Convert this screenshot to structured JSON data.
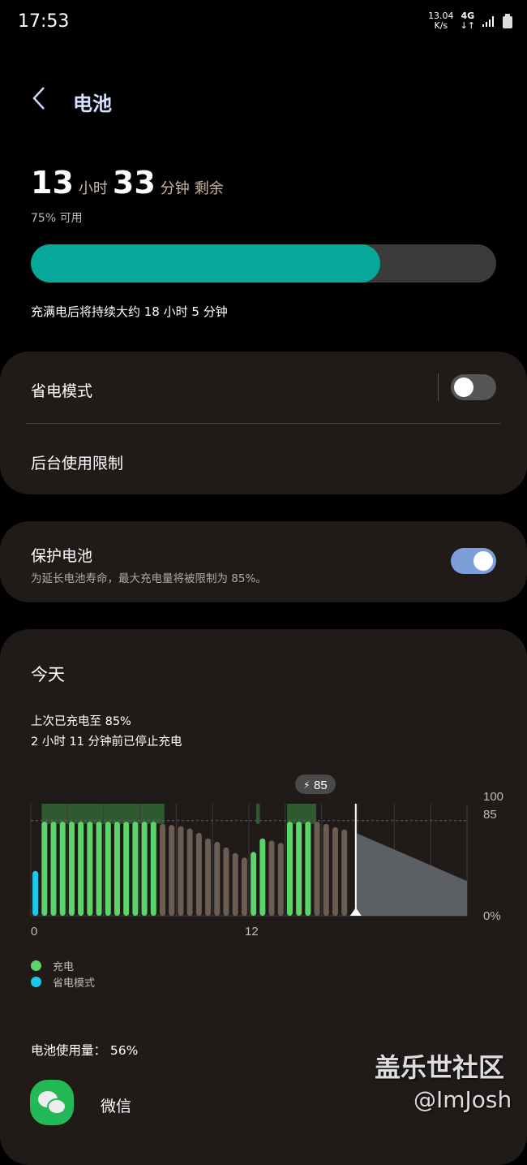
{
  "status_bar": {
    "time": "17:53",
    "net_speed": "13.04",
    "net_unit": "K/s",
    "network": "4G",
    "signal_icon": "signal-bars-icon",
    "battery_icon": "battery-icon"
  },
  "header": {
    "title": "电池",
    "back_icon": "chevron-left-icon"
  },
  "summary": {
    "hours": "13",
    "hours_unit": "小时",
    "minutes": "33",
    "minutes_unit": "分钟",
    "remaining": "剩余",
    "available": "75% 可用",
    "level_percent": 75,
    "full_charge_text": "充满电后将持续大约 18 小时 5 分钟",
    "accent": "#05a899"
  },
  "power_saving": {
    "label": "省电模式",
    "enabled": false,
    "background_limits": "后台使用限制"
  },
  "protect": {
    "label": "保护电池",
    "description": "为延长电池寿命，最大充电量将被限制为 85%。",
    "enabled": true
  },
  "today": {
    "title": "今天",
    "last_charged": "上次已充电至 85%",
    "stopped": "2 小时 11 分钟前已停止充电",
    "usage": "电池使用量：  56%"
  },
  "chart_data": {
    "type": "bar",
    "x_unit": "hour",
    "xlim": [
      0,
      24
    ],
    "ylim": [
      0,
      100
    ],
    "x_tick_labels": [
      "0",
      "12"
    ],
    "y_tick_labels": [
      "100",
      "85",
      "0%"
    ],
    "charge_limit": 85,
    "tooltip": "85",
    "now_hour": 17.88,
    "bar_interval_hours": 0.5,
    "values": [
      40,
      84,
      84,
      84,
      84,
      84,
      84,
      84,
      84,
      84,
      84,
      84,
      84,
      84,
      82,
      81,
      80,
      78,
      74,
      69,
      66,
      61,
      56,
      52,
      57,
      69,
      67,
      65,
      84,
      84,
      84,
      84,
      82,
      79,
      77
    ],
    "bar_states": [
      "saving",
      "charge",
      "charge",
      "charge",
      "charge",
      "charge",
      "charge",
      "charge",
      "charge",
      "charge",
      "charge",
      "charge",
      "charge",
      "charge",
      "use",
      "use",
      "use",
      "use",
      "use",
      "use",
      "use",
      "use",
      "use",
      "use",
      "charge",
      "charge",
      "use",
      "use",
      "charge",
      "charge",
      "charge",
      "use",
      "use",
      "use",
      "use"
    ],
    "charging_periods": [
      [
        0.6,
        7.35
      ],
      [
        12.4,
        12.6
      ],
      [
        14.1,
        15.7
      ]
    ],
    "prediction": [
      [
        17.88,
        74
      ],
      [
        24,
        31
      ]
    ],
    "legend": [
      {
        "label": "充电",
        "color": "#5bd46b"
      },
      {
        "label": "省电模式",
        "color": "#1ec8e8"
      }
    ],
    "colors": {
      "charge": "#5bd46b",
      "saving": "#1ec8e8",
      "use": "#6b5d52",
      "charging_band": "#2f5a30",
      "prediction": "#5c5f63"
    }
  },
  "apps": [
    {
      "name": "微信",
      "icon": "wechat-icon"
    }
  ],
  "watermark": {
    "line1": "盖乐世社区",
    "line2": "@ImJosh"
  }
}
